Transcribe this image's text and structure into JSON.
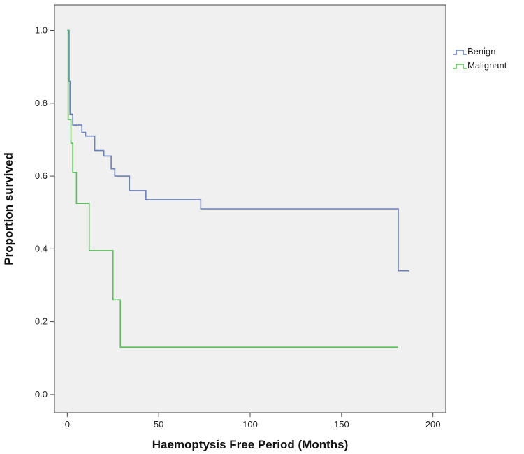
{
  "chart_data": {
    "type": "line",
    "subtype": "kaplan-meier-step",
    "xlabel": "Haemoptysis Free Period (Months)",
    "ylabel": "Proportion survived",
    "xlim": [
      -7,
      207
    ],
    "ylim": [
      -0.05,
      1.07
    ],
    "xticks": [
      0,
      50,
      100,
      150,
      200
    ],
    "yticks": [
      0.0,
      0.2,
      0.4,
      0.6,
      0.8,
      1.0
    ],
    "xtick_labels": [
      "0",
      "50",
      "100",
      "150",
      "200"
    ],
    "ytick_labels": [
      "0.0",
      "0.2",
      "0.4",
      "0.6",
      "0.8",
      "1.0"
    ],
    "grid": false,
    "legend_position": "right, outside plot area",
    "series": [
      {
        "name": "Benign",
        "color": "#6b7fb8",
        "points": [
          [
            0,
            1.0
          ],
          [
            1,
            0.86
          ],
          [
            1.5,
            0.77
          ],
          [
            3,
            0.74
          ],
          [
            8,
            0.72
          ],
          [
            10,
            0.71
          ],
          [
            15,
            0.67
          ],
          [
            20,
            0.655
          ],
          [
            24,
            0.62
          ],
          [
            26,
            0.6
          ],
          [
            34,
            0.56
          ],
          [
            43,
            0.535
          ],
          [
            73,
            0.51
          ],
          [
            181,
            0.34
          ],
          [
            187,
            0.34
          ]
        ]
      },
      {
        "name": "Malignant",
        "color": "#5cbf5c",
        "points": [
          [
            0,
            1.0
          ],
          [
            0.5,
            0.755
          ],
          [
            2,
            0.69
          ],
          [
            3,
            0.61
          ],
          [
            5,
            0.525
          ],
          [
            12,
            0.395
          ],
          [
            25,
            0.26
          ],
          [
            29,
            0.13
          ],
          [
            181,
            0.13
          ]
        ]
      }
    ]
  }
}
